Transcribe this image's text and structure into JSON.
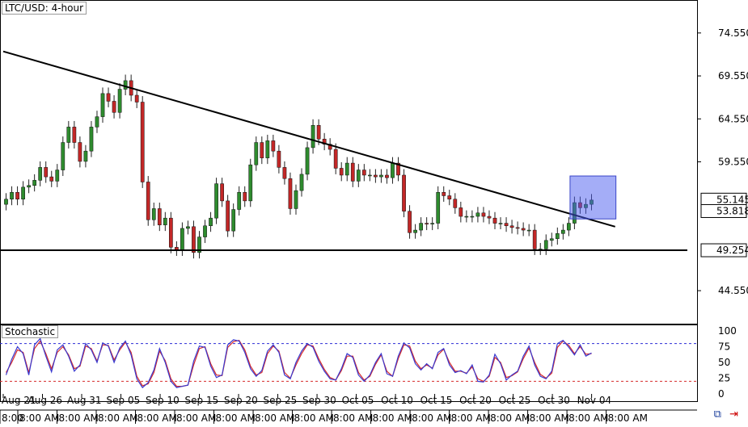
{
  "chart_data": {
    "type": "candlestick",
    "title": "LTC/USD: 4-hour",
    "price_axis": {
      "ylim": [
        40.8,
        78.2
      ],
      "ticks": [
        "74.550",
        "69.550",
        "64.550",
        "59.550",
        "44.550"
      ],
      "tick_values": [
        74.55,
        69.55,
        64.55,
        59.55,
        44.55
      ],
      "highlight_labels": [
        {
          "label": "55.145",
          "value": 55.145
        },
        {
          "label": "53.818",
          "value": 53.818
        },
        {
          "label": "49.254",
          "value": 49.254
        }
      ]
    },
    "date_labels": [
      "Aug 21",
      "Aug 26",
      "Aug 31",
      "Sep 05",
      "Sep 10",
      "Sep 15",
      "Sep 20",
      "Sep 25",
      "Sep 30",
      "Oct 05",
      "Oct 10",
      "Oct 15",
      "Oct 20",
      "Oct 25",
      "Oct 30",
      "Nov 04"
    ],
    "time_labels": [
      "8:00",
      "8:00 AM",
      "8:00 AM",
      "8:00 AM",
      "8:00 AM",
      "8:00 AM",
      "8:00 AM",
      "8:00 AM",
      "8:00 AM",
      "8:00 AM",
      "8:00 AM",
      "8:00 AM",
      "8:00 AM",
      "8:00 AM",
      "8:00 AM",
      "8:00 AM",
      "8:00 AM"
    ],
    "trendline": {
      "start": {
        "date": "Aug 21",
        "price": 72.4
      },
      "end": {
        "date": "Nov 07",
        "price": 52.0
      }
    },
    "support_line": {
      "price": 49.254
    },
    "highlight_box": {
      "date_start": "Nov 01",
      "date_end": "Nov 04",
      "price_low": 52.9,
      "price_high": 57.9
    },
    "closes": [
      55.2,
      56.0,
      55.2,
      56.6,
      56.8,
      57.4,
      58.9,
      57.8,
      57.3,
      58.6,
      61.8,
      63.6,
      61.8,
      59.6,
      60.8,
      63.6,
      64.8,
      67.5,
      66.6,
      65.3,
      68.0,
      69.0,
      67.3,
      66.5,
      57.2,
      52.8,
      54.1,
      52.2,
      53.0,
      49.6,
      49.3,
      51.8,
      52.0,
      49.0,
      50.8,
      52.1,
      53.0,
      57.0,
      55.0,
      51.5,
      54.0,
      56.0,
      55.0,
      59.2,
      61.8,
      60.0,
      62.0,
      60.8,
      58.9,
      57.6,
      54.1,
      56.2,
      58.1,
      61.2,
      63.8,
      62.2,
      61.6,
      61.0,
      58.8,
      58.0,
      59.4,
      57.3,
      58.6,
      58.0,
      58.0,
      57.8,
      58.0,
      57.7,
      59.4,
      58.0,
      53.8,
      51.3,
      51.6,
      52.4,
      52.3,
      52.4,
      56.0,
      55.6,
      55.2,
      54.2,
      53.2,
      53.2,
      53.2,
      53.6,
      53.2,
      53.0,
      52.4,
      52.4,
      52.1,
      51.9,
      51.8,
      51.6,
      51.6,
      49.4,
      49.4,
      50.4,
      50.6,
      51.2,
      51.6,
      52.4,
      54.8,
      54.2,
      54.6,
      55.1
    ],
    "stochastic": {
      "label": "Stochastic",
      "ticks": [
        "100",
        "75",
        "50",
        "25",
        "0"
      ],
      "tick_values": [
        100,
        75,
        50,
        25,
        0
      ],
      "ylim": [
        0,
        100
      ],
      "upper_level": 80,
      "lower_level": 20,
      "k": [
        30,
        55,
        75,
        64,
        30,
        78,
        88,
        60,
        35,
        70,
        78,
        60,
        36,
        46,
        80,
        70,
        50,
        81,
        76,
        50,
        73,
        84,
        62,
        24,
        10,
        18,
        38,
        72,
        50,
        20,
        10,
        12,
        14,
        52,
        76,
        74,
        44,
        26,
        30,
        78,
        86,
        84,
        66,
        40,
        28,
        37,
        68,
        78,
        66,
        30,
        24,
        50,
        68,
        80,
        74,
        52,
        36,
        24,
        22,
        40,
        64,
        58,
        30,
        20,
        30,
        50,
        64,
        32,
        28,
        60,
        81,
        73,
        48,
        38,
        48,
        40,
        66,
        72,
        46,
        34,
        37,
        32,
        46,
        20,
        19,
        30,
        63,
        48,
        22,
        30,
        36,
        60,
        76,
        46,
        28,
        24,
        36,
        80,
        85,
        74,
        62,
        78,
        60,
        65
      ],
      "d": [
        34,
        50,
        70,
        66,
        34,
        72,
        84,
        64,
        40,
        66,
        75,
        62,
        40,
        44,
        76,
        72,
        52,
        78,
        77,
        54,
        70,
        82,
        66,
        28,
        13,
        16,
        34,
        68,
        53,
        24,
        12,
        12,
        14,
        46,
        72,
        75,
        48,
        30,
        29,
        74,
        83,
        85,
        70,
        44,
        30,
        34,
        64,
        76,
        68,
        34,
        25,
        46,
        64,
        78,
        76,
        56,
        39,
        26,
        22,
        37,
        60,
        60,
        34,
        22,
        28,
        47,
        62,
        36,
        28,
        56,
        78,
        76,
        52,
        40,
        46,
        41,
        62,
        71,
        50,
        36,
        36,
        33,
        43,
        24,
        20,
        28,
        58,
        50,
        26,
        29,
        35,
        56,
        73,
        50,
        31,
        25,
        33,
        74,
        84,
        77,
        64,
        75,
        63,
        64
      ]
    }
  },
  "ui": {
    "nav_icons": [
      "link-chart-icon",
      "arrow-right-icon"
    ]
  }
}
